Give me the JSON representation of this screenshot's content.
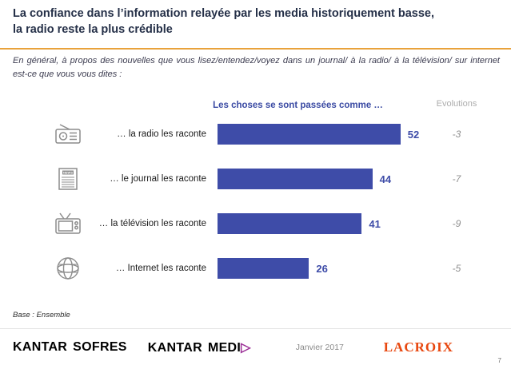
{
  "title_line1": "La confiance dans l’information relayée par les media historiquement basse,",
  "title_line2": "la radio reste la plus crédible",
  "subtitle": "En général, à propos des nouvelles que vous lisez/entendez/voyez dans un journal/ à la radio/ à la télévision/ sur internet est-ce que vous vous dites :",
  "chart_data": {
    "type": "bar",
    "orientation": "horizontal",
    "title": "Les choses se sont passées comme …",
    "categories": [
      "… la radio les raconte",
      "… le journal les raconte",
      "… la télévision les raconte",
      "… Internet les raconte"
    ],
    "values": [
      52,
      44,
      41,
      26
    ],
    "evolutions": [
      -3,
      -7,
      -9,
      -5
    ],
    "evolutions_header": "Evolutions",
    "xlim": [
      0,
      60
    ],
    "bar_color": "#3E4CA8",
    "value_label_color": "#3E4CA8",
    "row_icons": [
      "radio-icon",
      "newspaper-icon",
      "tv-icon",
      "internet-icon"
    ],
    "newspaper_icon_text": "NEWS"
  },
  "base_note": "Base : Ensemble",
  "footer": {
    "kantar_sofres": {
      "kantar": "KANTAR",
      "brand": "SOFRES"
    },
    "kantar_media": {
      "kantar": "KANTAR",
      "brand_prefix": "MEDI",
      "brand_glyph": "▷"
    },
    "date": "Janvier 2017",
    "lacroix": "LACROIX",
    "page_number": "7"
  },
  "colors": {
    "accent_orange": "#E9A23B",
    "bar_blue": "#3E4CA8",
    "media_purple": "#9B2D96",
    "lacroix_red": "#E8470F"
  }
}
